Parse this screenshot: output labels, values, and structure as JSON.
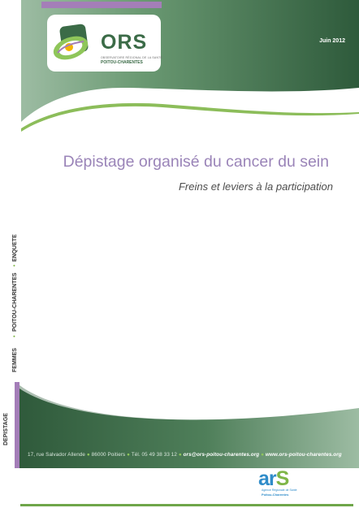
{
  "header": {
    "date": "Juin 2012"
  },
  "logo": {
    "name": "ORS",
    "subline1": "OBSERVATOIRE RÉGIONAL DE LA SANTÉ",
    "subline2": "POITOU-CHARENTES"
  },
  "title": {
    "main": "Dépistage organisé du cancer du sein",
    "subtitle": "Freins et leviers à la participation"
  },
  "side_labels": {
    "femmes": "FEMMES",
    "region": "POITOU-CHARENTES",
    "enquete": "ENQUETE",
    "depistage": "DEPISTAGE"
  },
  "footer": {
    "address": "17, rue Salvador Allende",
    "city": "86000 Poitiers",
    "phone": "Tél. 05 49 38 33 12",
    "email": "ors@ors-poitou-charentes.org",
    "website": "www.ors-poitou-charentes.org"
  },
  "ars_logo": {
    "word_ar": "ar",
    "word_s": "S",
    "caption1": "Agence Régionale de Santé",
    "caption2": "Poitou-Charentes"
  },
  "colors": {
    "green_dark": "#2f5a3b",
    "green_mid": "#5f8f68",
    "purple": "#a47eb8",
    "title_purple": "#9a84b8",
    "accent_green": "#7fb648",
    "ars_blue": "#2f8cc9"
  }
}
